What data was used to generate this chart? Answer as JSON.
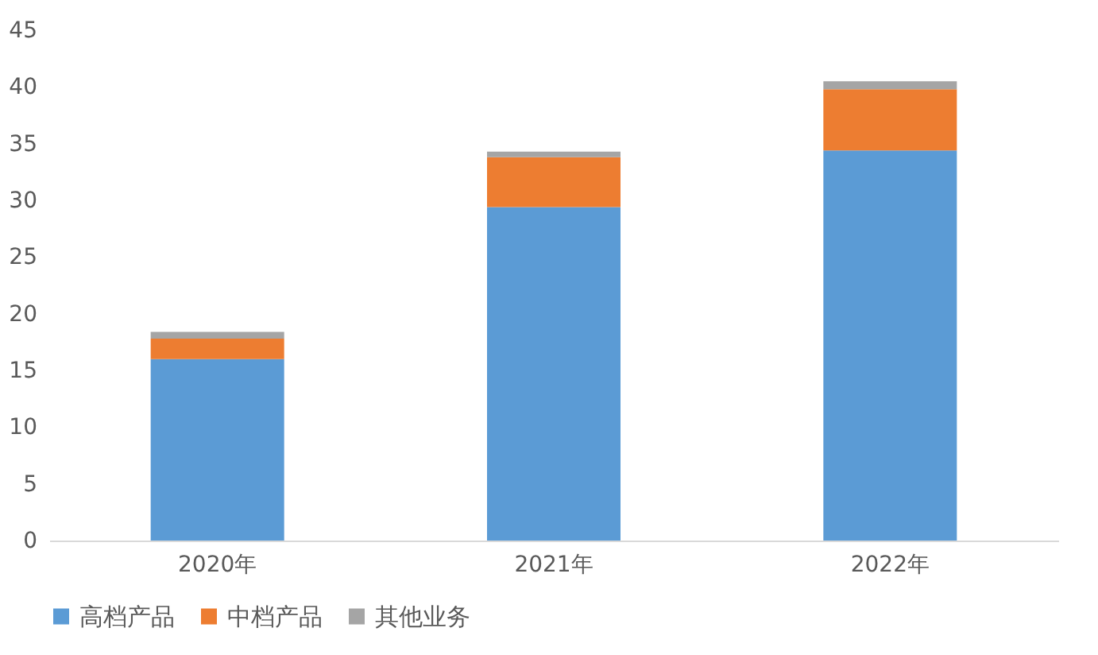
{
  "chart_data": {
    "type": "bar",
    "stacked": true,
    "categories": [
      "2020年",
      "2021年",
      "2022年"
    ],
    "series": [
      {
        "name": "高档产品",
        "color": "#5b9bd5",
        "values": [
          16,
          29.4,
          34.4
        ]
      },
      {
        "name": "中档产品",
        "color": "#ed7d31",
        "values": [
          1.8,
          4.4,
          5.4
        ]
      },
      {
        "name": "其他业务",
        "color": "#a5a5a5",
        "values": [
          0.6,
          0.5,
          0.7
        ]
      }
    ],
    "ylim": [
      0,
      45
    ],
    "yticks": [
      0,
      5,
      10,
      15,
      20,
      25,
      30,
      35,
      40,
      45
    ],
    "grid": false,
    "legend": "bottom"
  }
}
